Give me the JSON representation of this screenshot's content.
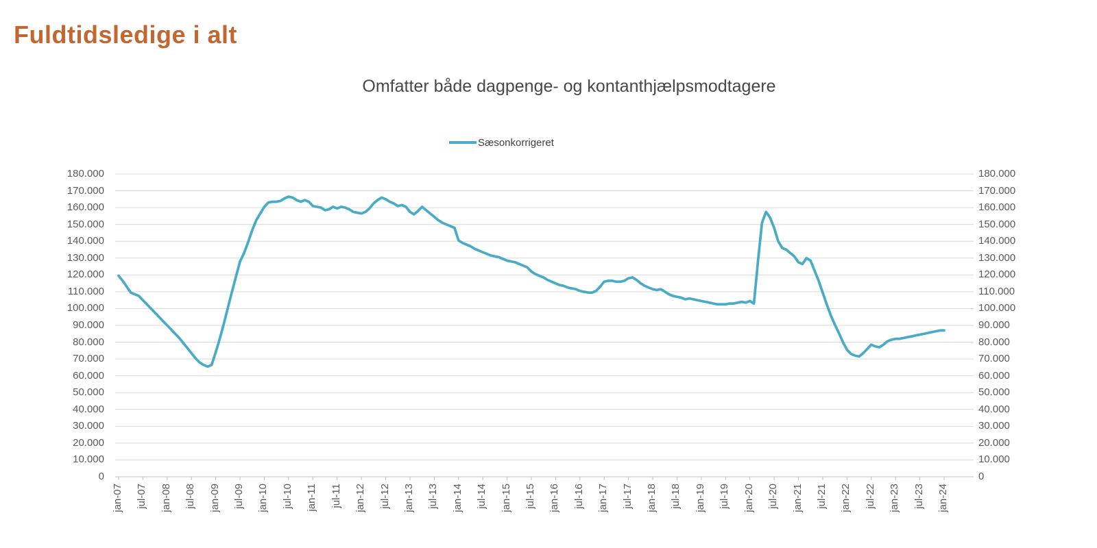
{
  "page": {
    "title": "Fuldtidsledige i alt"
  },
  "chart": {
    "subtitle": "Omfatter både dagpenge- og kontanthjælpsmodtagere",
    "legend": [
      {
        "label": "Sæsonkorrigeret",
        "color": "#4AABC7"
      }
    ]
  },
  "colors": {
    "title": "#C2672F",
    "subtitle": "#484848",
    "axis_labels": "#595959",
    "legend_text": "#3F3F3F",
    "gridline": "#D9D9D9",
    "axis_line": "#BFBFBF",
    "series_line": "#4AABC7",
    "background": "#FFFFFF"
  },
  "chart_data": {
    "type": "line",
    "title": "Omfatter både dagpenge- og kontanthjælpsmodtagere",
    "legend_position": "top",
    "grid": "horizontal",
    "x_frequency": "monthly",
    "x_start": "jan-07",
    "x_end": "jan-24",
    "x_tick_every_months": 6,
    "x_tick_labels": [
      "jan-07",
      "jul-07",
      "jan-08",
      "jul-08",
      "jan-09",
      "jul-09",
      "jan-10",
      "jul-10",
      "jan-11",
      "jul-11",
      "jan-12",
      "jul-12",
      "jan-13",
      "jul-13",
      "jan-14",
      "jul-14",
      "jan-15",
      "jul-15",
      "jan-16",
      "jul-16",
      "jan-17",
      "jul-17",
      "jan-18",
      "jul-18",
      "jan-19",
      "jul-19",
      "jan-20",
      "jul-20",
      "jan-21",
      "jul-21",
      "jan-22",
      "jul-22",
      "jan-23",
      "jul-23",
      "jan-24"
    ],
    "ylim": [
      0,
      180000
    ],
    "y_tick_step": 10000,
    "y_tick_labels": [
      "0",
      "10.000",
      "20.000",
      "30.000",
      "40.000",
      "50.000",
      "60.000",
      "70.000",
      "80.000",
      "90.000",
      "100.000",
      "110.000",
      "120.000",
      "130.000",
      "140.000",
      "150.000",
      "160.000",
      "170.000",
      "180.000"
    ],
    "y_axis_sides": [
      "left",
      "right"
    ],
    "series": [
      {
        "name": "Sæsonkorrigeret",
        "color": "#4AABC7",
        "values": [
          119500,
          116500,
          113000,
          109500,
          108500,
          107500,
          105000,
          102500,
          100000,
          97500,
          95000,
          92500,
          90000,
          87500,
          85000,
          82500,
          79500,
          76500,
          73500,
          70500,
          68000,
          66500,
          65500,
          66500,
          74000,
          82000,
          91000,
          100500,
          110000,
          119000,
          128000,
          133000,
          139500,
          146500,
          152500,
          156500,
          160500,
          163000,
          163500,
          163500,
          164000,
          165500,
          166500,
          166000,
          164500,
          163500,
          164500,
          163500,
          161000,
          160500,
          160000,
          158500,
          159000,
          160500,
          159500,
          160500,
          160000,
          159000,
          157500,
          157000,
          156500,
          157500,
          159500,
          162500,
          164500,
          166000,
          165000,
          163500,
          162500,
          161000,
          161500,
          160500,
          157500,
          156000,
          158000,
          160500,
          158500,
          156500,
          154500,
          152500,
          151000,
          150000,
          149000,
          148000,
          140500,
          139000,
          138000,
          137000,
          135500,
          134500,
          133500,
          132500,
          131500,
          131000,
          130500,
          129500,
          128500,
          128000,
          127500,
          126500,
          125500,
          124500,
          122000,
          120500,
          119500,
          118500,
          117000,
          116000,
          115000,
          114000,
          113500,
          112500,
          112000,
          111500,
          110500,
          110000,
          109500,
          109500,
          110500,
          113000,
          116000,
          116500,
          116500,
          116000,
          116000,
          116500,
          118000,
          118500,
          117000,
          115000,
          113500,
          112500,
          111500,
          111000,
          111500,
          110000,
          108500,
          107500,
          107000,
          106500,
          105500,
          106000,
          105500,
          105000,
          104500,
          104000,
          103500,
          103000,
          102500,
          102500,
          102500,
          103000,
          103000,
          103500,
          104000,
          103500,
          104500,
          103000,
          128000,
          151000,
          157500,
          154000,
          148000,
          140000,
          136000,
          135000,
          133000,
          131000,
          127500,
          126500,
          130000,
          128500,
          122500,
          116500,
          109500,
          102500,
          96000,
          90500,
          85500,
          80000,
          75500,
          73000,
          72000,
          71500,
          73500,
          76000,
          78500,
          77500,
          77000,
          78500,
          80500,
          81500,
          82000,
          82000,
          82500,
          83000,
          83500,
          84000,
          84500,
          85000,
          85500,
          86000,
          86500,
          87000,
          87000
        ]
      }
    ]
  }
}
